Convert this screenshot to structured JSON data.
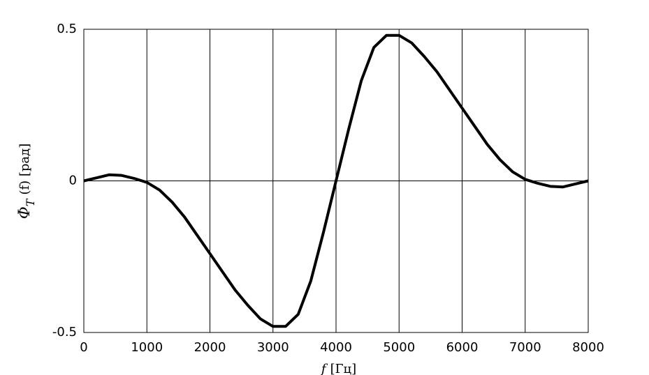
{
  "chart_data": {
    "type": "line",
    "ylabel_main": "Φ",
    "ylabel_sub": "T",
    "ylabel_rest": "(f)  [рад]",
    "xlabel_var": "f",
    "xlabel_unit": "[Гц]",
    "x": [
      0,
      200,
      400,
      600,
      800,
      1000,
      1200,
      1400,
      1600,
      1800,
      2000,
      2200,
      2400,
      2600,
      2800,
      3000,
      3200,
      3400,
      3600,
      3800,
      4000,
      4200,
      4400,
      4600,
      4800,
      5000,
      5200,
      5400,
      5600,
      5800,
      6000,
      6200,
      6400,
      6600,
      6800,
      7000,
      7200,
      7400,
      7600,
      7800,
      8000
    ],
    "values": [
      0,
      0.01,
      0.02,
      0.018,
      0.008,
      -0.005,
      -0.03,
      -0.07,
      -0.12,
      -0.18,
      -0.24,
      -0.3,
      -0.36,
      -0.41,
      -0.455,
      -0.48,
      -0.48,
      -0.44,
      -0.33,
      -0.17,
      0,
      0.17,
      0.33,
      0.44,
      0.48,
      0.48,
      0.455,
      0.41,
      0.36,
      0.3,
      0.24,
      0.18,
      0.12,
      0.07,
      0.03,
      0.005,
      -0.008,
      -0.018,
      -0.02,
      -0.01,
      0
    ],
    "color": "#000000",
    "xlim": [
      0,
      8000
    ],
    "xticks": [
      0,
      1000,
      2000,
      3000,
      4000,
      5000,
      6000,
      7000,
      8000
    ],
    "ylim": [
      -0.5,
      0.5
    ],
    "yticks": [
      -0.5,
      0,
      0.5
    ],
    "grid": true
  }
}
